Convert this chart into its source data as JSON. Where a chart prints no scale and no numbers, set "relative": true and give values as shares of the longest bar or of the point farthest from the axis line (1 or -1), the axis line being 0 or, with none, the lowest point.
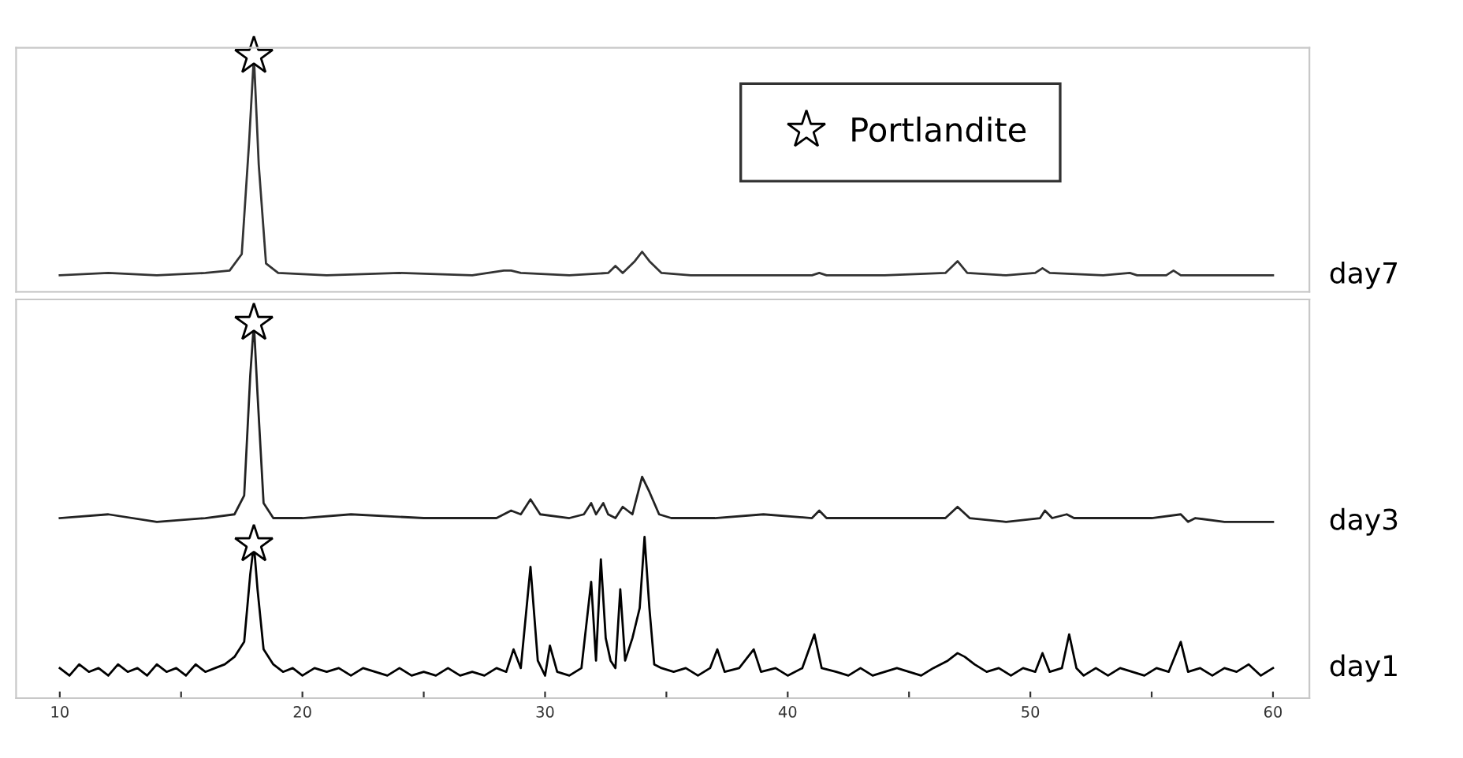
{
  "chart_data": [
    {
      "type": "line",
      "relative": true,
      "xlim": [
        8.2,
        61.5
      ],
      "tick_labels": false,
      "legend": "top right",
      "series": [
        {
          "name": "day7",
          "color": "#333333",
          "x": [
            10,
            12,
            14,
            16,
            17,
            17.5,
            17.8,
            18.0,
            18.2,
            18.5,
            19,
            21,
            24,
            27,
            28.3,
            28.6,
            29,
            31,
            32.6,
            32.9,
            33.2,
            33.7,
            34.0,
            34.3,
            34.8,
            36,
            39,
            41,
            41.3,
            41.6,
            44,
            46.5,
            47.0,
            47.4,
            49,
            50.2,
            50.5,
            50.8,
            53,
            54.1,
            54.4,
            55.6,
            55.9,
            56.2,
            58,
            60
          ],
          "values": [
            0.07,
            0.08,
            0.07,
            0.08,
            0.09,
            0.16,
            0.63,
            1,
            0.54,
            0.12,
            0.08,
            0.07,
            0.08,
            0.07,
            0.09,
            0.09,
            0.08,
            0.07,
            0.08,
            0.11,
            0.08,
            0.13,
            0.17,
            0.13,
            0.08,
            0.07,
            0.07,
            0.07,
            0.08,
            0.07,
            0.07,
            0.08,
            0.13,
            0.08,
            0.07,
            0.08,
            0.1,
            0.08,
            0.07,
            0.08,
            0.07,
            0.07,
            0.09,
            0.07,
            0.07,
            0.07
          ]
        },
        {
          "name": "Portlandite",
          "type": "scatter",
          "marker": "star",
          "color": "#000000",
          "x": [
            18.0
          ],
          "values": [
            1
          ]
        }
      ]
    },
    {
      "type": "line",
      "relative": true,
      "xlim": [
        8.2,
        61.5
      ],
      "xticks": [
        10,
        {
          "value": 15,
          "label": null
        },
        20,
        {
          "value": 25,
          "label": null
        },
        30,
        {
          "value": 35,
          "label": null
        },
        40,
        {
          "value": 45,
          "label": null
        },
        50,
        {
          "value": 55,
          "label": null
        },
        60
      ],
      "series": [
        {
          "name": "day3",
          "color": "#222222",
          "x": [
            10,
            12,
            14,
            16,
            17.2,
            17.6,
            17.85,
            18.0,
            18.15,
            18.4,
            18.8,
            20,
            22,
            25,
            28,
            28.6,
            29.0,
            29.4,
            29.8,
            31,
            31.6,
            31.9,
            32.1,
            32.4,
            32.6,
            32.9,
            33.2,
            33.6,
            34.0,
            34.3,
            34.7,
            35.2,
            37,
            39,
            41,
            41.3,
            41.6,
            44,
            46.5,
            47.0,
            47.5,
            49,
            50.4,
            50.6,
            50.9,
            51.5,
            51.8,
            52.1,
            55,
            56.2,
            56.5,
            56.8,
            58,
            60
          ],
          "values": [
            0.48,
            0.49,
            0.47,
            0.48,
            0.49,
            0.54,
            0.86,
            1.0,
            0.81,
            0.52,
            0.48,
            0.48,
            0.49,
            0.48,
            0.48,
            0.5,
            0.49,
            0.53,
            0.49,
            0.48,
            0.49,
            0.52,
            0.49,
            0.52,
            0.49,
            0.48,
            0.51,
            0.49,
            0.59,
            0.55,
            0.49,
            0.48,
            0.48,
            0.49,
            0.48,
            0.5,
            0.48,
            0.48,
            0.48,
            0.51,
            0.48,
            0.47,
            0.48,
            0.5,
            0.48,
            0.49,
            0.48,
            0.48,
            0.48,
            0.49,
            0.47,
            0.48,
            0.47,
            0.47
          ]
        },
        {
          "name": "day1",
          "color": "#000000",
          "x": [
            10,
            10.4,
            10.8,
            11.2,
            11.6,
            12,
            12.4,
            12.8,
            13.2,
            13.6,
            14,
            14.4,
            14.8,
            15.2,
            15.6,
            16,
            16.4,
            16.8,
            17.2,
            17.6,
            17.85,
            18.0,
            18.15,
            18.4,
            18.8,
            19.2,
            19.6,
            20,
            20.5,
            21,
            21.5,
            22,
            22.5,
            23,
            23.5,
            24,
            24.5,
            25,
            25.5,
            26,
            26.5,
            27,
            27.5,
            28,
            28.4,
            28.7,
            29.0,
            29.4,
            29.7,
            30.0,
            30.2,
            30.5,
            31,
            31.5,
            31.9,
            32.1,
            32.3,
            32.5,
            32.7,
            32.9,
            33.1,
            33.3,
            33.6,
            33.9,
            34.1,
            34.3,
            34.5,
            34.8,
            35.3,
            35.8,
            36.3,
            36.8,
            37.1,
            37.4,
            38,
            38.6,
            38.9,
            39.5,
            40,
            40.6,
            41.1,
            41.4,
            42,
            42.5,
            43,
            43.5,
            44,
            44.5,
            45,
            45.5,
            46,
            46.6,
            47,
            47.3,
            47.7,
            48.2,
            48.7,
            49.2,
            49.7,
            50.2,
            50.5,
            50.8,
            51.3,
            51.6,
            51.9,
            52.2,
            52.7,
            53.2,
            53.7,
            54.2,
            54.7,
            55.2,
            55.7,
            56.2,
            56.5,
            57,
            57.5,
            58,
            58.5,
            59,
            59.5,
            60
          ],
          "values": [
            0.08,
            0.06,
            0.09,
            0.07,
            0.08,
            0.06,
            0.09,
            0.07,
            0.08,
            0.06,
            0.09,
            0.07,
            0.08,
            0.06,
            0.09,
            0.07,
            0.08,
            0.09,
            0.11,
            0.15,
            0.33,
            0.41,
            0.29,
            0.13,
            0.09,
            0.07,
            0.08,
            0.06,
            0.08,
            0.07,
            0.08,
            0.06,
            0.08,
            0.07,
            0.06,
            0.08,
            0.06,
            0.07,
            0.06,
            0.08,
            0.06,
            0.07,
            0.06,
            0.08,
            0.07,
            0.13,
            0.08,
            0.35,
            0.1,
            0.06,
            0.14,
            0.07,
            0.06,
            0.08,
            0.31,
            0.1,
            0.37,
            0.16,
            0.1,
            0.08,
            0.29,
            0.1,
            0.16,
            0.24,
            0.43,
            0.24,
            0.09,
            0.08,
            0.07,
            0.08,
            0.06,
            0.08,
            0.13,
            0.07,
            0.08,
            0.13,
            0.07,
            0.08,
            0.06,
            0.08,
            0.17,
            0.08,
            0.07,
            0.06,
            0.08,
            0.06,
            0.07,
            0.08,
            0.07,
            0.06,
            0.08,
            0.1,
            0.12,
            0.11,
            0.09,
            0.07,
            0.08,
            0.06,
            0.08,
            0.07,
            0.12,
            0.07,
            0.08,
            0.17,
            0.08,
            0.06,
            0.08,
            0.06,
            0.08,
            0.07,
            0.06,
            0.08,
            0.07,
            0.15,
            0.07,
            0.08,
            0.06,
            0.08,
            0.07,
            0.09,
            0.06,
            0.08
          ]
        },
        {
          "type": "scatter",
          "marker": "star",
          "color": "#000000",
          "x": [
            18.0,
            18.0
          ],
          "values": [
            1.0,
            0.41
          ]
        }
      ]
    }
  ]
}
